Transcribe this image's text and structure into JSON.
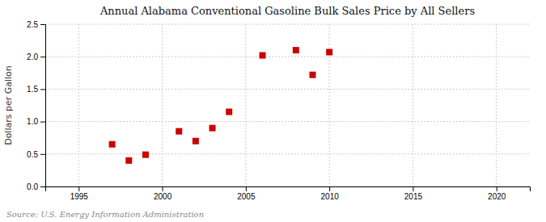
{
  "chart_data": {
    "type": "scatter",
    "title": "Annual Alabama Conventional Gasoline Bulk Sales Price by All Sellers",
    "ylabel": "Dollars per Gallon",
    "annotations": [
      "Source: U.S. Energy Information Administration"
    ],
    "x": [
      1997,
      1998,
      1999,
      2001,
      2002,
      2003,
      2004,
      2006,
      2008,
      2009,
      2010
    ],
    "values": [
      0.65,
      0.4,
      0.49,
      0.85,
      0.7,
      0.9,
      1.15,
      2.02,
      2.1,
      1.72,
      2.07
    ],
    "xlim": [
      1993,
      2022
    ],
    "ylim": [
      0.0,
      2.5
    ],
    "xticks": [
      1995,
      2000,
      2005,
      2010,
      2015,
      2020
    ],
    "yticks": [
      {
        "value": 0.0,
        "label": "0.0"
      },
      0.5,
      {
        "value": 1.0,
        "label": "1.0"
      },
      1.5,
      {
        "value": 2.0,
        "label": "2.0"
      },
      2.5
    ],
    "color": "#cc0000",
    "marker": "square",
    "grid": true
  }
}
